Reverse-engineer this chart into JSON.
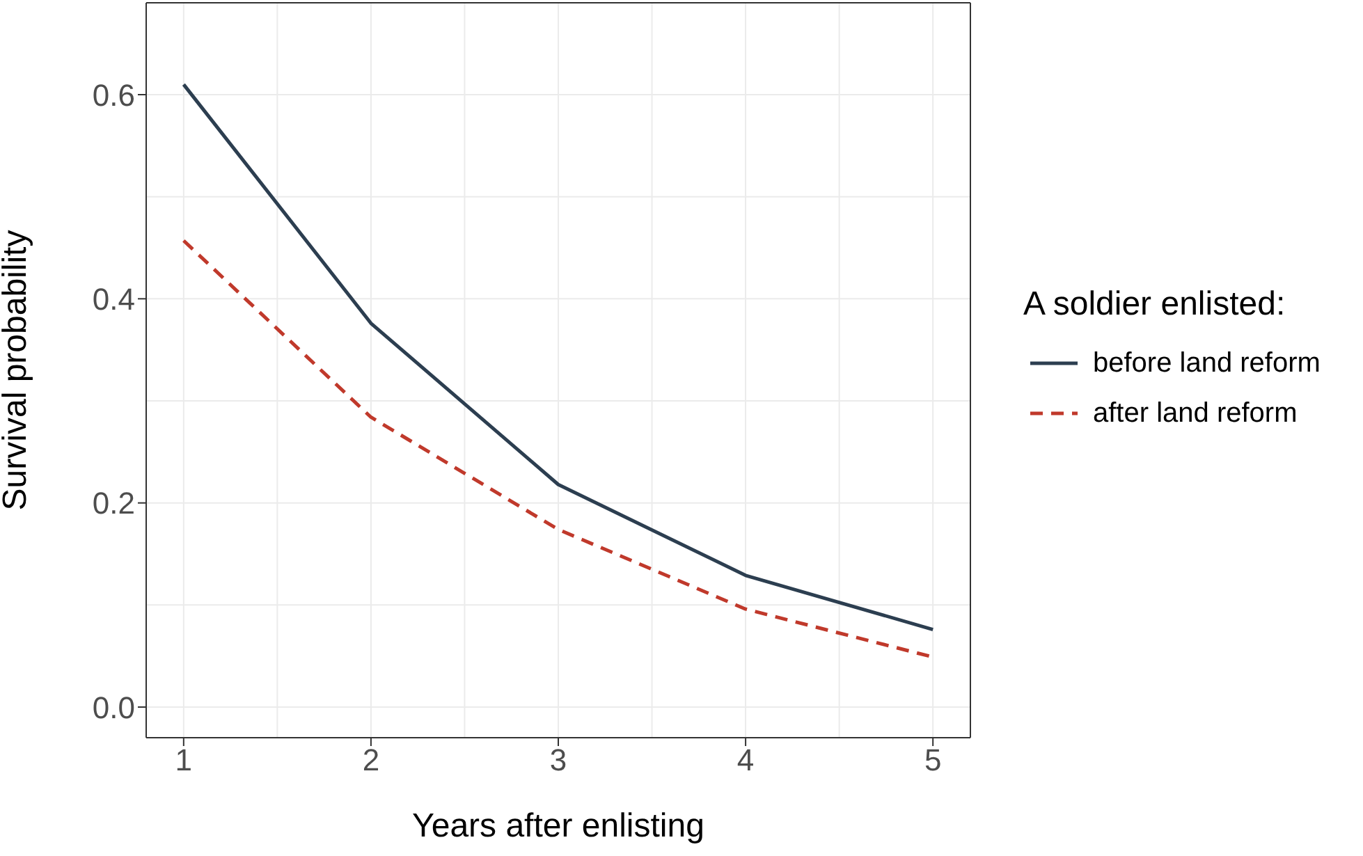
{
  "chart_data": {
    "type": "line",
    "xlabel": "Years after enlisting",
    "ylabel": "Survival probability",
    "legend_title": "A soldier enlisted:",
    "x": [
      1,
      2,
      3,
      4,
      5
    ],
    "series": [
      {
        "name": "before land reform",
        "color": "#2c3e50",
        "line_style": "solid",
        "values": [
          0.61,
          0.376,
          0.218,
          0.129,
          0.076
        ]
      },
      {
        "name": "after land reform",
        "color": "#c0392b",
        "line_style": "dashed",
        "values": [
          0.457,
          0.284,
          0.174,
          0.096,
          0.049
        ]
      }
    ],
    "xlim": [
      0.8,
      5.2
    ],
    "xticks": [
      1,
      2,
      3,
      4,
      5
    ],
    "ylim": [
      -0.03,
      0.69
    ],
    "yticks": [
      {
        "value": 0,
        "label": "0.0"
      },
      {
        "value": 0.2,
        "label": "0.2"
      },
      {
        "value": 0.4,
        "label": "0.4"
      },
      {
        "value": 0.6,
        "label": "0.6"
      }
    ],
    "grid": true,
    "legend": "right",
    "marker": "none"
  }
}
